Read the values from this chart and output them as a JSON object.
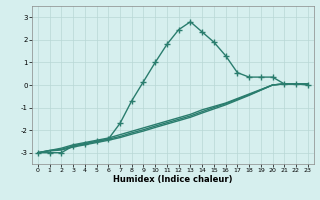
{
  "xlabel": "Humidex (Indice chaleur)",
  "x": [
    0,
    1,
    2,
    3,
    4,
    5,
    6,
    7,
    8,
    9,
    10,
    11,
    12,
    13,
    14,
    15,
    16,
    17,
    18,
    19,
    20,
    21,
    22,
    23
  ],
  "line_main": [
    -3.0,
    -3.0,
    -3.0,
    -2.7,
    -2.6,
    -2.5,
    -2.4,
    -1.7,
    -0.7,
    0.15,
    1.0,
    1.8,
    2.45,
    2.8,
    2.35,
    1.9,
    1.3,
    0.55,
    0.35,
    0.35,
    0.35,
    0.05,
    0.05,
    0.0
  ],
  "line2": [
    -3.0,
    -2.9,
    -2.8,
    -2.65,
    -2.55,
    -2.45,
    -2.35,
    -2.2,
    -2.05,
    -1.9,
    -1.75,
    -1.6,
    -1.45,
    -1.3,
    -1.1,
    -0.95,
    -0.8,
    -0.6,
    -0.4,
    -0.2,
    0.0,
    0.05,
    0.05,
    0.05
  ],
  "line3": [
    -3.0,
    -2.9,
    -2.85,
    -2.7,
    -2.6,
    -2.5,
    -2.4,
    -2.28,
    -2.12,
    -1.98,
    -1.82,
    -1.67,
    -1.52,
    -1.37,
    -1.18,
    -1.0,
    -0.83,
    -0.63,
    -0.43,
    -0.22,
    0.0,
    0.05,
    0.05,
    0.05
  ],
  "line4": [
    -3.0,
    -2.92,
    -2.88,
    -2.75,
    -2.65,
    -2.55,
    -2.45,
    -2.33,
    -2.18,
    -2.04,
    -1.88,
    -1.73,
    -1.58,
    -1.43,
    -1.24,
    -1.06,
    -0.88,
    -0.67,
    -0.46,
    -0.23,
    0.0,
    0.05,
    0.05,
    0.05
  ],
  "line_color": "#2a7d6e",
  "bg_color": "#d6efee",
  "grid_color": "#b8d8d5",
  "ylim": [
    -3.5,
    3.5
  ],
  "xlim": [
    -0.5,
    23.5
  ],
  "yticks": [
    -3,
    -2,
    -1,
    0,
    1,
    2,
    3
  ],
  "xticks": [
    0,
    1,
    2,
    3,
    4,
    5,
    6,
    7,
    8,
    9,
    10,
    11,
    12,
    13,
    14,
    15,
    16,
    17,
    18,
    19,
    20,
    21,
    22,
    23
  ],
  "marker": "+",
  "markersize": 4,
  "linewidth": 1.0
}
